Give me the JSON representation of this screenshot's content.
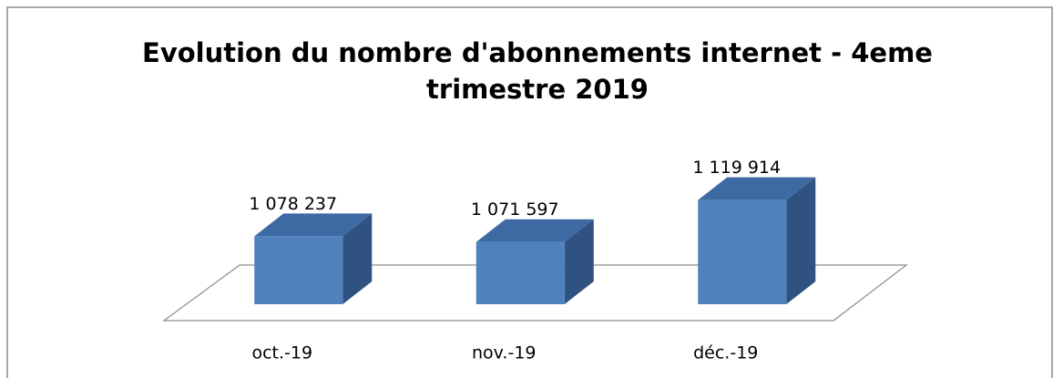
{
  "chart_data": {
    "type": "bar3d",
    "title": [
      "Evolution du nombre d'abonnements internet - 4eme",
      "trimestre 2019"
    ],
    "categories": [
      "oct.-19",
      "nov.-19",
      "déc.-19"
    ],
    "values": [
      1078237,
      1071597,
      1119914
    ],
    "value_labels": [
      "1 078 237",
      "1 071 597",
      "1 119 914"
    ],
    "color": "#4f81bd",
    "ylim": [
      1000000,
      1130000
    ]
  }
}
